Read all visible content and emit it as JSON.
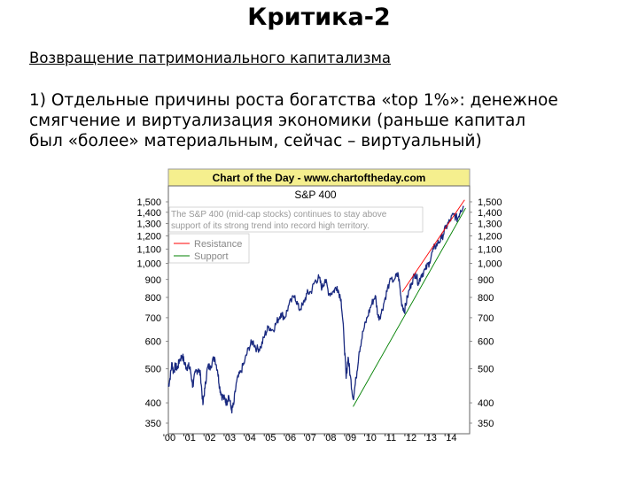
{
  "slide": {
    "title": "Критика-2",
    "subtitle": "Возвращение патримониального капитализма",
    "body_lines": [
      "1) Отдельные причины роста богатства «top 1%»: денежное",
      "смягчение и виртуализация экономики (раньше капитал",
      "был «более» материальным, сейчас – виртуальный)"
    ]
  },
  "chart_data": {
    "type": "line",
    "header": "Chart of the Day - www.chartoftheday.com",
    "title": "S&P 400",
    "annotation": [
      "The S&P 400 (mid-cap stocks) continues to stay above",
      "support of its strong trend into record high territory."
    ],
    "log_scale": true,
    "ylim": [
      350,
      1500
    ],
    "yticks": [
      1500,
      1400,
      1300,
      1200,
      1100,
      1000,
      900,
      800,
      700,
      600,
      500,
      400,
      350
    ],
    "ytick_labels": [
      "1,500",
      "1,400",
      "1,300",
      "1,200",
      "1,100",
      "1,000",
      "900",
      "800",
      "700",
      "600",
      "500",
      "400",
      "350"
    ],
    "xlim": [
      2000,
      2015
    ],
    "xticks": [
      2000,
      2001,
      2002,
      2003,
      2004,
      2005,
      2006,
      2007,
      2008,
      2009,
      2010,
      2011,
      2012,
      2013,
      2014
    ],
    "xtick_labels": [
      "'00",
      "'01",
      "'02",
      "'03",
      "'04",
      "'05",
      "'06",
      "'07",
      "'08",
      "'09",
      "'10",
      "'11",
      "'12",
      "'13",
      "'14"
    ],
    "legend": [
      {
        "label": "Resistance",
        "color": "#ff0000"
      },
      {
        "label": "Support",
        "color": "#008000"
      }
    ],
    "series": [
      {
        "name": "S&P 400",
        "color": "#1a2a80",
        "points": [
          [
            2000.0,
            445
          ],
          [
            2000.08,
            470
          ],
          [
            2000.18,
            520
          ],
          [
            2000.25,
            490
          ],
          [
            2000.35,
            510
          ],
          [
            2000.45,
            500
          ],
          [
            2000.55,
            530
          ],
          [
            2000.7,
            545
          ],
          [
            2000.8,
            520
          ],
          [
            2000.9,
            505
          ],
          [
            2001.0,
            510
          ],
          [
            2001.1,
            495
          ],
          [
            2001.22,
            445
          ],
          [
            2001.35,
            490
          ],
          [
            2001.5,
            500
          ],
          [
            2001.6,
            480
          ],
          [
            2001.72,
            395
          ],
          [
            2001.82,
            440
          ],
          [
            2001.95,
            505
          ],
          [
            2002.1,
            510
          ],
          [
            2002.3,
            540
          ],
          [
            2002.45,
            495
          ],
          [
            2002.55,
            445
          ],
          [
            2002.65,
            420
          ],
          [
            2002.8,
            410
          ],
          [
            2002.9,
            400
          ],
          [
            2003.0,
            420
          ],
          [
            2003.15,
            380
          ],
          [
            2003.25,
            395
          ],
          [
            2003.4,
            460
          ],
          [
            2003.6,
            490
          ],
          [
            2003.8,
            525
          ],
          [
            2004.0,
            575
          ],
          [
            2004.2,
            600
          ],
          [
            2004.4,
            570
          ],
          [
            2004.6,
            575
          ],
          [
            2004.8,
            625
          ],
          [
            2005.0,
            660
          ],
          [
            2005.2,
            645
          ],
          [
            2005.4,
            680
          ],
          [
            2005.6,
            720
          ],
          [
            2005.8,
            700
          ],
          [
            2006.0,
            760
          ],
          [
            2006.3,
            810
          ],
          [
            2006.5,
            740
          ],
          [
            2006.7,
            760
          ],
          [
            2006.9,
            820
          ],
          [
            2007.1,
            830
          ],
          [
            2007.3,
            890
          ],
          [
            2007.5,
            910
          ],
          [
            2007.65,
            850
          ],
          [
            2007.8,
            900
          ],
          [
            2008.0,
            820
          ],
          [
            2008.2,
            830
          ],
          [
            2008.4,
            860
          ],
          [
            2008.6,
            790
          ],
          [
            2008.75,
            600
          ],
          [
            2008.85,
            470
          ],
          [
            2008.95,
            540
          ],
          [
            2009.05,
            480
          ],
          [
            2009.2,
            410
          ],
          [
            2009.35,
            470
          ],
          [
            2009.5,
            560
          ],
          [
            2009.7,
            640
          ],
          [
            2009.9,
            700
          ],
          [
            2010.1,
            760
          ],
          [
            2010.3,
            810
          ],
          [
            2010.45,
            700
          ],
          [
            2010.6,
            720
          ],
          [
            2010.8,
            800
          ],
          [
            2011.0,
            880
          ],
          [
            2011.3,
            910
          ],
          [
            2011.45,
            930
          ],
          [
            2011.6,
            780
          ],
          [
            2011.75,
            730
          ],
          [
            2011.9,
            800
          ],
          [
            2012.1,
            880
          ],
          [
            2012.3,
            940
          ],
          [
            2012.45,
            880
          ],
          [
            2012.6,
            930
          ],
          [
            2012.8,
            960
          ],
          [
            2013.0,
            1010
          ],
          [
            2013.2,
            1100
          ],
          [
            2013.4,
            1140
          ],
          [
            2013.6,
            1180
          ],
          [
            2013.8,
            1260
          ],
          [
            2014.0,
            1320
          ],
          [
            2014.2,
            1380
          ],
          [
            2014.4,
            1340
          ],
          [
            2014.55,
            1420
          ],
          [
            2014.7,
            1460
          ]
        ]
      },
      {
        "name": "Resistance",
        "color": "#ff0000",
        "points": [
          [
            2011.65,
            830
          ],
          [
            2014.75,
            1520
          ]
        ]
      },
      {
        "name": "Support",
        "color": "#008000",
        "points": [
          [
            2009.2,
            390
          ],
          [
            2014.8,
            1440
          ]
        ]
      }
    ]
  }
}
